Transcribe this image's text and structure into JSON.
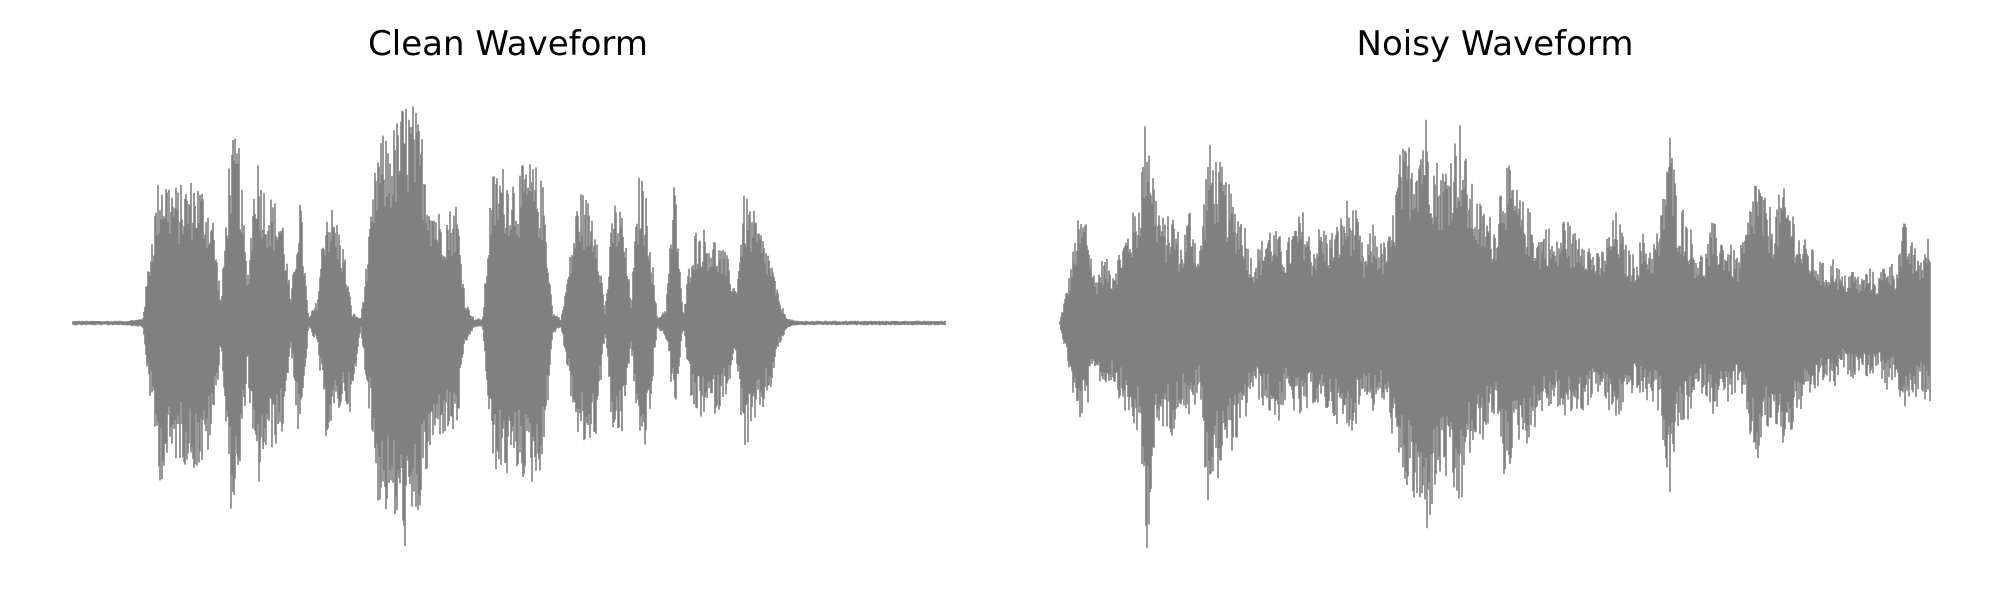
{
  "chart_data": [
    {
      "type": "line",
      "title": "Clean Waveform",
      "xlabel": "",
      "ylabel": "",
      "axes_visible": false,
      "grid": false,
      "line_color": "#808080",
      "ylim": [
        -1.0,
        1.0
      ],
      "x": [
        0.0,
        0.02,
        0.04,
        0.06,
        0.08,
        0.09,
        0.1,
        0.12,
        0.14,
        0.15,
        0.16,
        0.17,
        0.18,
        0.19,
        0.2,
        0.21,
        0.22,
        0.23,
        0.24,
        0.25,
        0.26,
        0.27,
        0.28,
        0.29,
        0.3,
        0.31,
        0.32,
        0.33,
        0.34,
        0.35,
        0.36,
        0.37,
        0.38,
        0.39,
        0.4,
        0.41,
        0.42,
        0.43,
        0.44,
        0.45,
        0.46,
        0.47,
        0.48,
        0.49,
        0.5,
        0.51,
        0.52,
        0.53,
        0.54,
        0.55,
        0.56,
        0.57,
        0.58,
        0.59,
        0.6,
        0.61,
        0.62,
        0.63,
        0.64,
        0.65,
        0.66,
        0.67,
        0.68,
        0.69,
        0.7,
        0.71,
        0.72,
        0.73,
        0.74,
        0.75,
        0.76,
        0.77,
        0.78,
        0.79,
        0.8,
        0.81,
        0.82,
        0.83,
        0.84,
        0.85,
        0.86,
        0.87,
        0.88,
        0.89,
        0.9,
        0.91,
        0.92,
        0.94,
        0.96,
        0.98,
        1.0
      ],
      "envelope_upper": [
        0.01,
        0.01,
        0.01,
        0.01,
        0.02,
        0.4,
        0.7,
        0.6,
        0.65,
        0.6,
        0.5,
        0.1,
        0.8,
        0.82,
        0.2,
        0.78,
        0.6,
        0.55,
        0.5,
        0.1,
        0.6,
        0.02,
        0.1,
        0.55,
        0.5,
        0.35,
        0.05,
        0.02,
        0.4,
        0.82,
        0.83,
        0.88,
        0.99,
        0.97,
        0.85,
        0.6,
        0.5,
        0.5,
        0.55,
        0.1,
        0.02,
        0.02,
        0.65,
        0.7,
        0.68,
        0.66,
        0.72,
        0.7,
        0.6,
        0.05,
        0.02,
        0.3,
        0.6,
        0.55,
        0.5,
        0.05,
        0.55,
        0.5,
        0.1,
        0.7,
        0.5,
        0.02,
        0.07,
        0.66,
        0.02,
        0.4,
        0.43,
        0.4,
        0.36,
        0.3,
        0.15,
        0.58,
        0.5,
        0.4,
        0.3,
        0.1,
        0.02,
        0.01,
        0.01,
        0.01,
        0.01,
        0.01,
        0.01,
        0.01,
        0.01,
        0.01,
        0.01,
        0.01,
        0.01,
        0.01,
        0.01
      ],
      "envelope_lower": [
        -0.01,
        -0.01,
        -0.01,
        -0.01,
        -0.02,
        -0.4,
        -0.7,
        -0.6,
        -0.65,
        -0.65,
        -0.5,
        -0.1,
        -0.82,
        -0.8,
        -0.2,
        -0.78,
        -0.6,
        -0.55,
        -0.5,
        -0.1,
        -0.6,
        -0.02,
        -0.1,
        -0.5,
        -0.45,
        -0.35,
        -0.4,
        -0.02,
        -0.4,
        -0.8,
        -0.85,
        -0.9,
        -0.99,
        -0.98,
        -0.8,
        -0.6,
        -0.5,
        -0.5,
        -0.5,
        -0.1,
        -0.02,
        -0.02,
        -0.62,
        -0.68,
        -0.68,
        -0.66,
        -0.7,
        -0.72,
        -0.6,
        -0.05,
        -0.02,
        -0.3,
        -0.55,
        -0.55,
        -0.5,
        -0.05,
        -0.55,
        -0.5,
        -0.1,
        -0.6,
        -0.5,
        -0.02,
        -0.07,
        -0.4,
        -0.02,
        -0.4,
        -0.42,
        -0.4,
        -0.4,
        -0.3,
        -0.15,
        -0.58,
        -0.5,
        -0.4,
        -0.3,
        -0.1,
        -0.02,
        -0.01,
        -0.01,
        -0.01,
        -0.01,
        -0.01,
        -0.01,
        -0.01,
        -0.01,
        -0.01,
        -0.01,
        -0.01,
        -0.01,
        -0.01,
        -0.01
      ]
    },
    {
      "type": "line",
      "title": "Noisy Waveform",
      "xlabel": "",
      "ylabel": "",
      "axes_visible": false,
      "grid": false,
      "line_color": "#808080",
      "ylim": [
        -1.0,
        1.0
      ],
      "x": [
        0.0,
        0.01,
        0.02,
        0.03,
        0.04,
        0.05,
        0.06,
        0.07,
        0.08,
        0.09,
        0.1,
        0.11,
        0.12,
        0.13,
        0.14,
        0.15,
        0.16,
        0.17,
        0.18,
        0.19,
        0.2,
        0.21,
        0.22,
        0.23,
        0.24,
        0.25,
        0.26,
        0.27,
        0.28,
        0.29,
        0.3,
        0.31,
        0.32,
        0.33,
        0.34,
        0.35,
        0.36,
        0.37,
        0.38,
        0.39,
        0.4,
        0.41,
        0.42,
        0.43,
        0.44,
        0.45,
        0.46,
        0.47,
        0.48,
        0.49,
        0.5,
        0.51,
        0.52,
        0.53,
        0.54,
        0.55,
        0.56,
        0.57,
        0.58,
        0.59,
        0.6,
        0.61,
        0.62,
        0.63,
        0.64,
        0.65,
        0.66,
        0.67,
        0.68,
        0.69,
        0.7,
        0.71,
        0.72,
        0.73,
        0.74,
        0.75,
        0.76,
        0.77,
        0.78,
        0.79,
        0.8,
        0.81,
        0.82,
        0.83,
        0.84,
        0.85,
        0.86,
        0.87,
        0.88,
        0.89,
        0.9,
        0.91,
        0.92,
        0.93,
        0.94,
        0.95,
        0.96,
        0.97,
        0.98,
        0.99,
        1.0
      ],
      "envelope_upper": [
        0.01,
        0.2,
        0.45,
        0.5,
        0.2,
        0.3,
        0.25,
        0.35,
        0.45,
        0.55,
        0.99,
        0.6,
        0.45,
        0.5,
        0.35,
        0.55,
        0.3,
        0.8,
        0.75,
        0.65,
        0.55,
        0.5,
        0.3,
        0.35,
        0.45,
        0.4,
        0.35,
        0.45,
        0.5,
        0.35,
        0.45,
        0.4,
        0.45,
        0.55,
        0.5,
        0.3,
        0.45,
        0.35,
        0.4,
        0.75,
        0.8,
        0.85,
        0.95,
        0.75,
        0.7,
        0.8,
        0.9,
        0.65,
        0.55,
        0.5,
        0.45,
        0.75,
        0.65,
        0.55,
        0.5,
        0.4,
        0.45,
        0.35,
        0.5,
        0.4,
        0.45,
        0.35,
        0.3,
        0.4,
        0.5,
        0.35,
        0.3,
        0.4,
        0.35,
        0.45,
        0.9,
        0.55,
        0.5,
        0.35,
        0.3,
        0.45,
        0.4,
        0.35,
        0.3,
        0.45,
        0.7,
        0.55,
        0.5,
        0.6,
        0.55,
        0.4,
        0.35,
        0.3,
        0.25,
        0.3,
        0.2,
        0.25,
        0.2,
        0.25,
        0.2,
        0.3,
        0.25,
        0.45,
        0.35,
        0.3,
        0.4
      ],
      "envelope_lower": [
        -0.01,
        -0.2,
        -0.45,
        -0.4,
        -0.2,
        -0.3,
        -0.25,
        -0.35,
        -0.45,
        -0.5,
        -0.99,
        -0.55,
        -0.45,
        -0.5,
        -0.35,
        -0.45,
        -0.3,
        -0.8,
        -0.7,
        -0.6,
        -0.55,
        -0.5,
        -0.3,
        -0.35,
        -0.4,
        -0.45,
        -0.35,
        -0.4,
        -0.45,
        -0.35,
        -0.4,
        -0.4,
        -0.45,
        -0.5,
        -0.45,
        -0.3,
        -0.4,
        -0.35,
        -0.45,
        -0.7,
        -0.75,
        -0.85,
        -0.95,
        -0.8,
        -0.65,
        -0.8,
        -0.85,
        -0.6,
        -0.55,
        -0.5,
        -0.4,
        -0.7,
        -0.6,
        -0.5,
        -0.55,
        -0.4,
        -0.4,
        -0.35,
        -0.45,
        -0.4,
        -0.4,
        -0.35,
        -0.3,
        -0.4,
        -0.45,
        -0.35,
        -0.3,
        -0.35,
        -0.35,
        -0.4,
        -0.8,
        -0.5,
        -0.45,
        -0.35,
        -0.3,
        -0.4,
        -0.35,
        -0.35,
        -0.3,
        -0.45,
        -0.65,
        -0.5,
        -0.45,
        -0.55,
        -0.5,
        -0.4,
        -0.35,
        -0.3,
        -0.25,
        -0.3,
        -0.2,
        -0.25,
        -0.2,
        -0.25,
        -0.2,
        -0.3,
        -0.25,
        -0.4,
        -0.35,
        -0.3,
        -0.4
      ]
    }
  ]
}
